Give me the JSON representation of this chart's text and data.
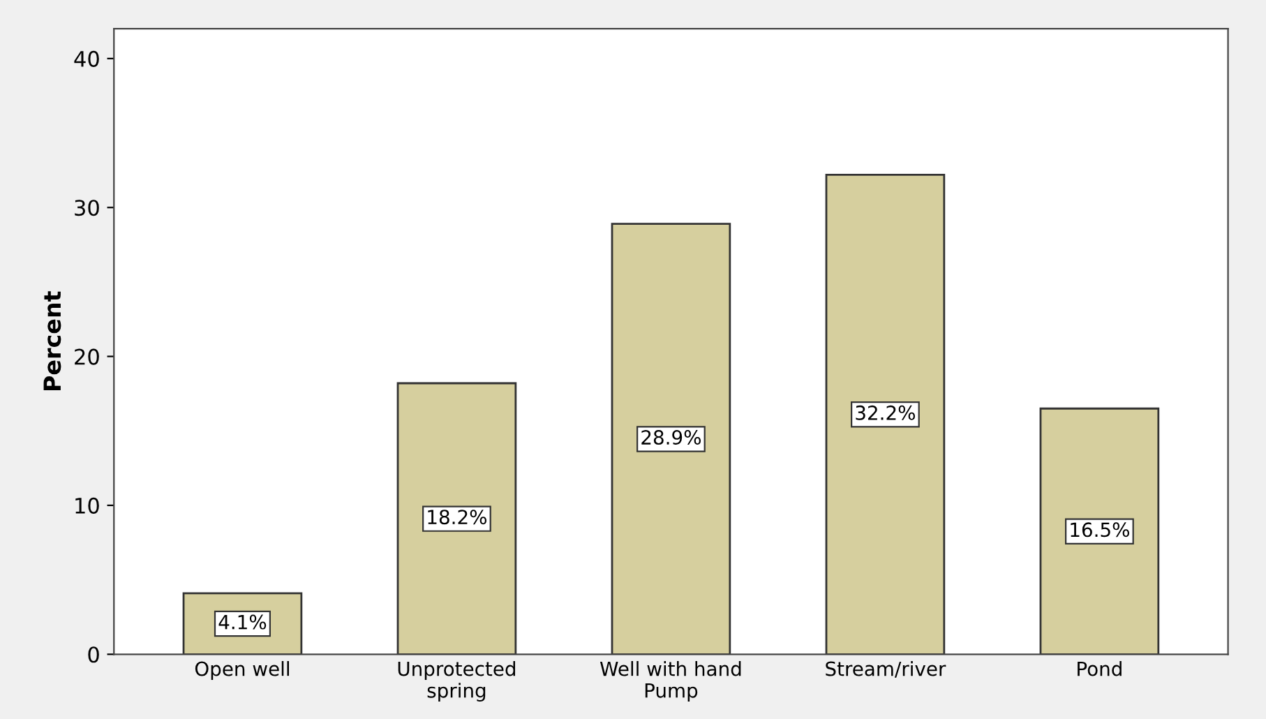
{
  "chart_data": {
    "type": "bar",
    "ylabel": "Percent",
    "categories": [
      "Open well",
      "Unprotected\nspring",
      "Well with hand\nPump",
      "Stream/river",
      "Pond"
    ],
    "values": [
      4.1,
      18.2,
      28.9,
      32.2,
      16.5
    ],
    "value_labels": [
      "4.1%",
      "18.2%",
      "28.9%",
      "32.2%",
      "16.5%"
    ],
    "color": "#d6cf9e",
    "ylim": [
      0,
      42
    ],
    "yticks": [
      0,
      10,
      20,
      30,
      40
    ],
    "grid": false
  }
}
